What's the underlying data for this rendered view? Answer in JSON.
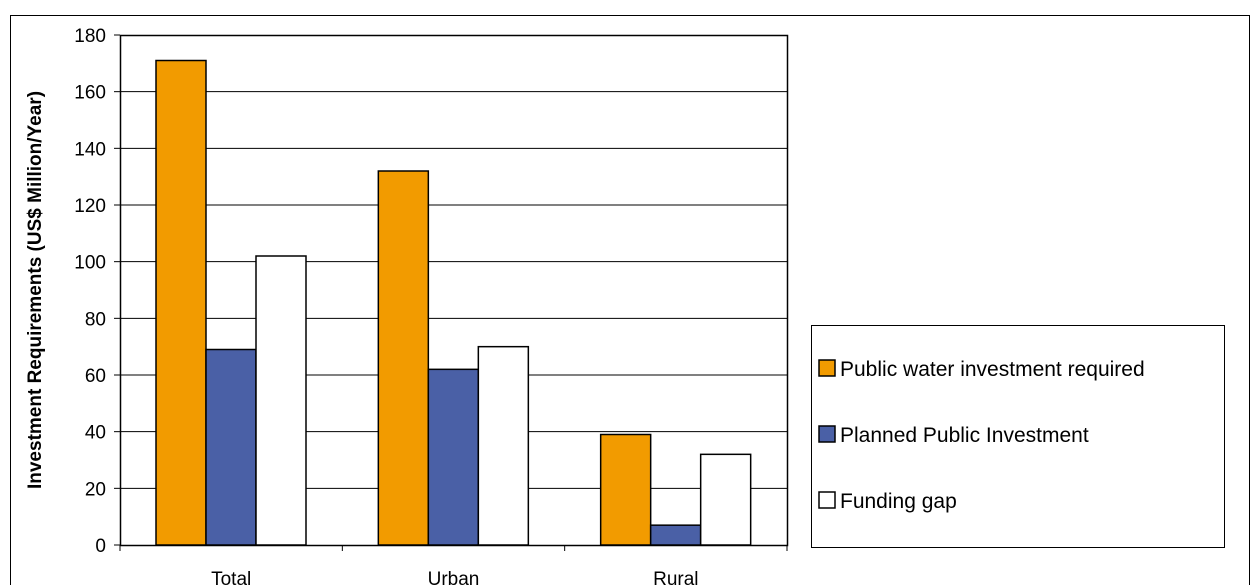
{
  "chart_data": {
    "type": "bar",
    "title": "",
    "xlabel": "",
    "ylabel": "Investment Requirements (US$ Million/Year)",
    "categories": [
      "Total",
      "Urban",
      "Rural"
    ],
    "ylim": [
      0,
      180
    ],
    "yticks": [
      0,
      20,
      40,
      60,
      80,
      100,
      120,
      140,
      160,
      180
    ],
    "grid": true,
    "legend_position": "right",
    "series": [
      {
        "name": "Public water  investment required",
        "color": "#F29B00",
        "values": [
          171,
          132,
          39
        ]
      },
      {
        "name": "Planned Public Investment",
        "color": "#4A60A6",
        "values": [
          69,
          62,
          7
        ]
      },
      {
        "name": "Funding gap",
        "color": "#FFFFFF",
        "values": [
          102,
          70,
          32
        ]
      }
    ]
  }
}
